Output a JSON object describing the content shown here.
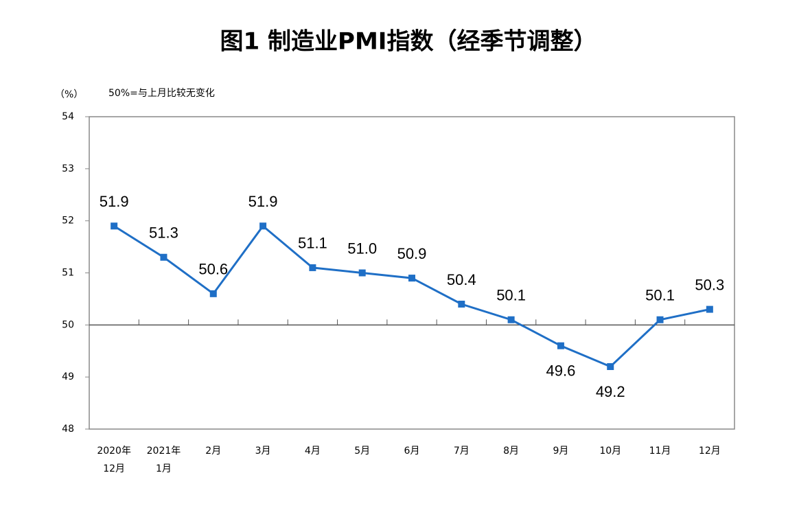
{
  "chart_data": {
    "type": "line",
    "title": "图1 制造业PMI指数（经季节调整）",
    "y_unit": "（%）",
    "annotation": "50%=与上月比较无变化",
    "categories": [
      [
        "2020年",
        "12月"
      ],
      [
        "2021年",
        "1月"
      ],
      [
        "2月"
      ],
      [
        "3月"
      ],
      [
        "4月"
      ],
      [
        "5月"
      ],
      [
        "6月"
      ],
      [
        "7月"
      ],
      [
        "8月"
      ],
      [
        "9月"
      ],
      [
        "10月"
      ],
      [
        "11月"
      ],
      [
        "12月"
      ]
    ],
    "series": [
      {
        "name": "制造业PMI",
        "color": "#1f6fc6",
        "values": [
          51.9,
          51.3,
          50.6,
          51.9,
          51.1,
          51.0,
          50.9,
          50.4,
          50.1,
          49.6,
          49.2,
          50.1,
          50.3
        ],
        "value_labels": [
          "51.9",
          "51.3",
          "50.6",
          "51.9",
          "51.1",
          "51.0",
          "50.9",
          "50.4",
          "50.1",
          "49.6",
          "49.2",
          "50.1",
          "50.3"
        ]
      }
    ],
    "ylim": [
      48,
      54
    ],
    "yticks": [
      48,
      49,
      50,
      51,
      52,
      53,
      54
    ],
    "reference_line": 50
  }
}
